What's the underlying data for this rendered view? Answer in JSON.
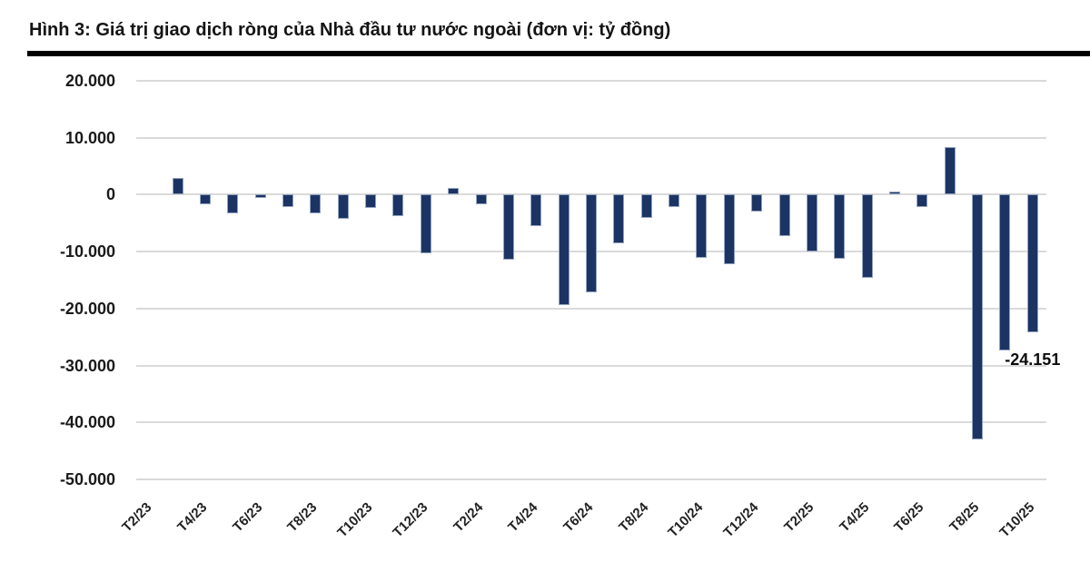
{
  "figure": {
    "title": "Hình 3: Giá trị giao dịch ròng của Nhà đầu tư nước ngoài (đơn vị: tỷ đồng)"
  },
  "chart_data": {
    "type": "bar",
    "title": "Hình 3: Giá trị giao dịch ròng của Nhà đầu tư nước ngoài (đơn vị: tỷ đồng)",
    "unit": "tỷ đồng",
    "categories": [
      "T2/23",
      "T3/23",
      "T4/23",
      "T5/23",
      "T6/23",
      "T7/23",
      "T8/23",
      "T9/23",
      "T10/23",
      "T11/23",
      "T12/23",
      "T1/24",
      "T2/24",
      "T3/24",
      "T4/24",
      "T5/24",
      "T6/24",
      "T7/24",
      "T8/24",
      "T9/24",
      "T10/24",
      "T11/24",
      "T12/24",
      "T1/25",
      "T2/25",
      "T3/25",
      "T4/25",
      "T5/25",
      "T6/25",
      "T7/25",
      "T8/25",
      "T9/25",
      "T10/25"
    ],
    "values": [
      0,
      3000,
      -1700,
      -3300,
      -500,
      -2100,
      -3300,
      -4200,
      -2400,
      -3800,
      -10300,
      1250,
      -1700,
      -11400,
      -5450,
      -19400,
      -17100,
      -8550,
      -4050,
      -2100,
      -11050,
      -12200,
      -2900,
      -7250,
      -9950,
      -11300,
      -14650,
      550,
      -2150,
      8400,
      -43000,
      -27350,
      -24151
    ],
    "x_tick_labels_shown": [
      "T2/23",
      "T4/23",
      "T6/23",
      "T8/23",
      "T10/23",
      "T12/23",
      "T2/24",
      "T4/24",
      "T6/24",
      "T8/24",
      "T10/24",
      "T12/24",
      "T2/25",
      "T4/25",
      "T6/25",
      "T8/25",
      "T10/25"
    ],
    "y_ticks": [
      "20.000",
      "10.000",
      "0",
      "-10.000",
      "-20.000",
      "-30.000",
      "-40.000",
      "-50.000"
    ],
    "ylim": [
      -50000,
      20000
    ],
    "annotation": {
      "text": "-24.151",
      "category": "T10/25",
      "value": -24151
    },
    "grid": "horizontal",
    "legend": "none",
    "colors": {
      "bar_fill": "#1c3463",
      "bar_border": "#93a3be",
      "gridline": "#dadada",
      "title_text": "#141414",
      "axis_text": "#1a1a1a",
      "separator": "#000000"
    }
  }
}
